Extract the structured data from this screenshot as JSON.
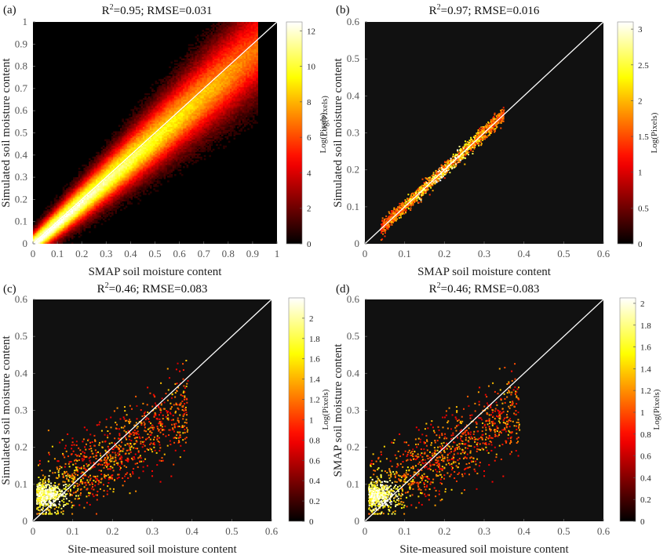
{
  "chart_data": [
    {
      "id": "a",
      "type": "heatmap",
      "panel_label": "(a)",
      "title": {
        "pre": "R",
        "sup": "2",
        "post": "=0.95; RMSE=0.031"
      },
      "xlabel": "SMAP soil moisture content",
      "ylabel": "Simulated soil moisture content",
      "xlim": [
        0,
        1
      ],
      "ylim": [
        0,
        1
      ],
      "xticks": [
        "0",
        "0.1",
        "0.2",
        "0.3",
        "0.4",
        "0.5",
        "0.6",
        "0.7",
        "0.8",
        "0.9",
        "1"
      ],
      "yticks": [
        "0",
        "0.1",
        "0.2",
        "0.3",
        "0.4",
        "0.5",
        "0.6",
        "0.7",
        "0.8",
        "0.9",
        "1"
      ],
      "colorbar": {
        "label": "Log(Pixels)",
        "range": [
          0,
          12.5
        ],
        "ticks": [
          "0",
          "2",
          "4",
          "6",
          "8",
          "10",
          "12"
        ]
      },
      "one_to_one_line": true,
      "colormap": "hot",
      "density": "dense band along 1:1 line from 0 to ~0.9, brightest below 0.5"
    },
    {
      "id": "b",
      "type": "heatmap",
      "panel_label": "(b)",
      "title": {
        "pre": "R",
        "sup": "2",
        "post": "=0.97; RMSE=0.016"
      },
      "xlabel": "SMAP soil moisture content",
      "ylabel": "Simulated soil moisture content",
      "xlim": [
        0,
        0.6
      ],
      "ylim": [
        0,
        0.6
      ],
      "xticks": [
        "0",
        "0.1",
        "0.2",
        "0.3",
        "0.4",
        "0.5",
        "0.6"
      ],
      "yticks": [
        "0",
        "0.1",
        "0.2",
        "0.3",
        "0.4",
        "0.5",
        "0.6"
      ],
      "colorbar": {
        "label": "Log(Pixels)",
        "range": [
          0,
          3.1
        ],
        "ticks": [
          "0",
          "0.5",
          "1",
          "1.5",
          "2",
          "2.5",
          "3"
        ]
      },
      "extra_label": "Log(Pixels)",
      "one_to_one_line": true,
      "colormap": "hot",
      "density": "narrow band along 1:1 line from 0.04 to 0.35"
    },
    {
      "id": "c",
      "type": "heatmap",
      "panel_label": "(c)",
      "title": {
        "pre": "R",
        "sup": "2",
        "post": "=0.46; RMSE=0.083"
      },
      "xlabel": "Site-measured soil moisture content",
      "ylabel": "Simulated soil moisture content",
      "xlim": [
        0,
        0.6
      ],
      "ylim": [
        0,
        0.6
      ],
      "xticks": [
        "0",
        "0.1",
        "0.2",
        "0.3",
        "0.4",
        "0.5",
        "0.6"
      ],
      "yticks": [
        "0",
        "0.1",
        "0.2",
        "0.3",
        "0.4",
        "0.5",
        "0.6"
      ],
      "colorbar": {
        "label": "Log(Pixels)",
        "range": [
          0,
          2.2
        ],
        "ticks": [
          "0",
          "0.2",
          "0.4",
          "0.6",
          "0.8",
          "1",
          "1.2",
          "1.4",
          "1.6",
          "1.8",
          "2"
        ]
      },
      "one_to_one_line": true,
      "colormap": "hot",
      "density": "scattered cloud from x 0 to 0.4, y 0.05 to 0.4, densest near (0.03, 0.07)"
    },
    {
      "id": "d",
      "type": "heatmap",
      "panel_label": "(d)",
      "title": {
        "pre": "R",
        "sup": "2",
        "post": "=0.46; RMSE=0.083"
      },
      "xlabel": "Site-measured soil moisture content",
      "ylabel": "SMAP soil moisture content",
      "xlim": [
        0,
        0.6
      ],
      "ylim": [
        0,
        0.6
      ],
      "xticks": [
        "0",
        "0.1",
        "0.2",
        "0.3",
        "0.4",
        "0.5",
        "0.6"
      ],
      "yticks": [
        "0",
        "0.1",
        "0.2",
        "0.3",
        "0.4",
        "0.5",
        "0.6"
      ],
      "colorbar": {
        "label": "Log(Pixels)",
        "range": [
          0,
          2.05
        ],
        "ticks": [
          "0",
          "0.2",
          "0.4",
          "0.6",
          "0.8",
          "1",
          "1.2",
          "1.4",
          "1.6",
          "1.8",
          "2"
        ]
      },
      "one_to_one_line": true,
      "colormap": "hot",
      "density": "scattered cloud from x 0 to 0.4, y 0.05 to 0.4, densest near (0.03, 0.07)"
    }
  ]
}
